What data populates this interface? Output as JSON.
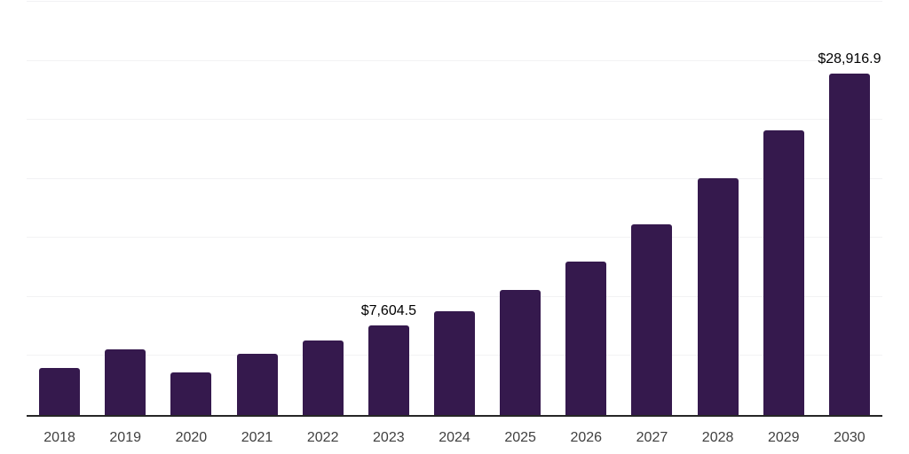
{
  "chart_data": {
    "type": "bar",
    "title": "",
    "xlabel": "",
    "ylabel": "",
    "categories": [
      "2018",
      "2019",
      "2020",
      "2021",
      "2022",
      "2023",
      "2024",
      "2025",
      "2026",
      "2027",
      "2028",
      "2029",
      "2030"
    ],
    "values": [
      3990,
      5560,
      3610,
      5190,
      6320,
      7604.5,
      8800,
      10600,
      13010,
      16170,
      20080,
      24140,
      28916.9
    ],
    "data_labels": [
      "",
      "",
      "",
      "",
      "",
      "$7,604.5",
      "",
      "",
      "",
      "",
      "",
      "",
      "$28,916.9"
    ],
    "ylim": [
      0,
      35000
    ],
    "gridline_step": 5000,
    "grid": true,
    "legend_position": "none",
    "y_axis_tick_labels_visible": false,
    "colors": {
      "bar": "#35194D",
      "gridline": "#F2F2F4",
      "axis_line": "#262626",
      "tick_label": "#404040",
      "data_label": "#000000",
      "background": "#FFFFFF"
    }
  }
}
